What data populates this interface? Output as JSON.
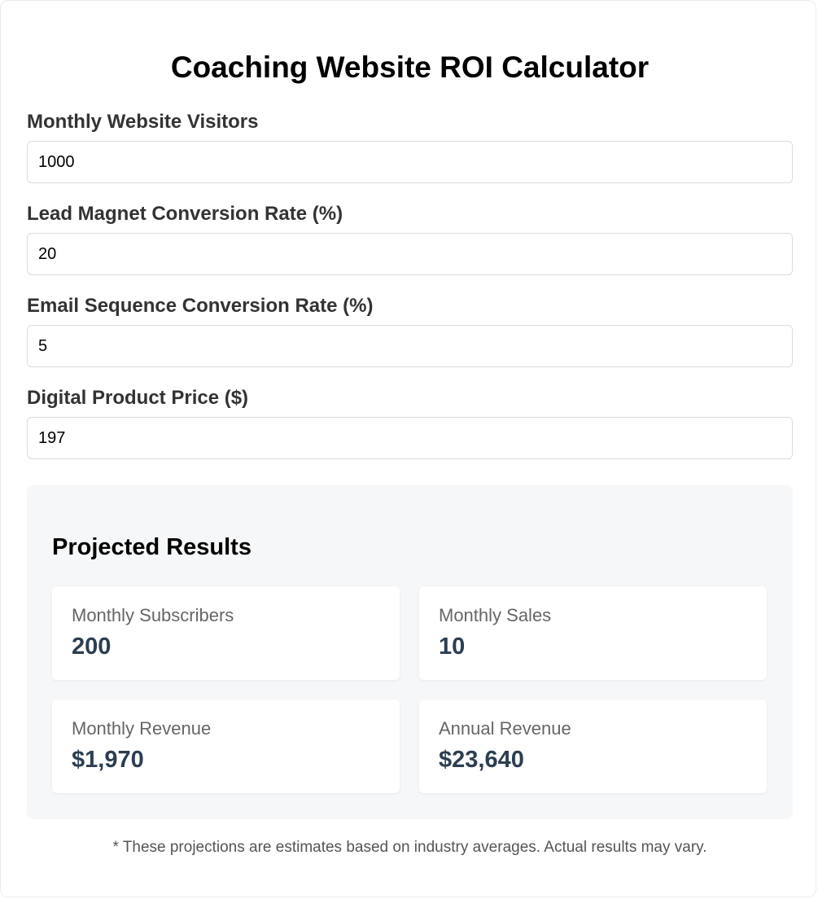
{
  "title": "Coaching Website ROI Calculator",
  "fields": [
    {
      "label": "Monthly Website Visitors",
      "value": "1000"
    },
    {
      "label": "Lead Magnet Conversion Rate (%)",
      "value": "20"
    },
    {
      "label": "Email Sequence Conversion Rate (%)",
      "value": "5"
    },
    {
      "label": "Digital Product Price ($)",
      "value": "197"
    }
  ],
  "results": {
    "title": "Projected Results",
    "metrics": [
      {
        "label": "Monthly Subscribers",
        "value": "200"
      },
      {
        "label": "Monthly Sales",
        "value": "10"
      },
      {
        "label": "Monthly Revenue",
        "value": "$1,970"
      },
      {
        "label": "Annual Revenue",
        "value": "$23,640"
      }
    ]
  },
  "disclaimer": "* These projections are estimates based on industry averages. Actual results may vary.",
  "colors": {
    "metric_value": "#2c3e50",
    "results_background": "#f6f7f9",
    "label_text": "#333333"
  }
}
